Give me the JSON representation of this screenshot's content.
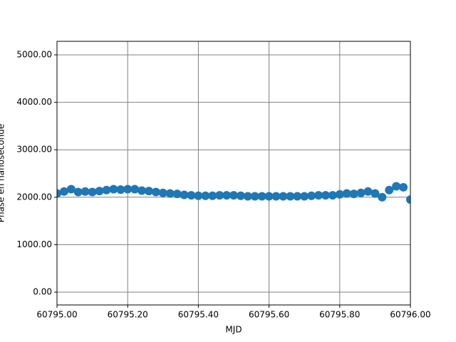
{
  "chart_data": {
    "type": "scatter",
    "xlabel": "MJD",
    "ylabel": "Phase en nanoseconde",
    "xlim": [
      60795.0,
      60796.0
    ],
    "xticks": [
      {
        "value": 60795.0,
        "label": "60795.00"
      },
      {
        "value": 60795.2,
        "label": "60795.20"
      },
      {
        "value": 60795.4,
        "label": "60795.40"
      },
      {
        "value": 60795.6,
        "label": "60795.60"
      },
      {
        "value": 60795.8,
        "label": "60795.80"
      },
      {
        "value": 60796.0,
        "label": "60796.00"
      }
    ],
    "ylim": [
      -270,
      5285
    ],
    "yticks": [
      {
        "value": 0,
        "label": "0.00"
      },
      {
        "value": 1000,
        "label": "1000.00"
      },
      {
        "value": 2000,
        "label": "2000.00"
      },
      {
        "value": 3000,
        "label": "3000.00"
      },
      {
        "value": 4000,
        "label": "4000.00"
      },
      {
        "value": 5000,
        "label": "5000.00"
      }
    ],
    "grid": true,
    "color": "#1f77b4",
    "x": [
      60795.0,
      60795.02,
      60795.04,
      60795.06,
      60795.08,
      60795.1,
      60795.12,
      60795.14,
      60795.16,
      60795.18,
      60795.2,
      60795.22,
      60795.24,
      60795.26,
      60795.28,
      60795.3,
      60795.32,
      60795.34,
      60795.36,
      60795.38,
      60795.4,
      60795.42,
      60795.44,
      60795.46,
      60795.48,
      60795.5,
      60795.52,
      60795.54,
      60795.56,
      60795.58,
      60795.6,
      60795.62,
      60795.64,
      60795.66,
      60795.68,
      60795.7,
      60795.72,
      60795.74,
      60795.76,
      60795.78,
      60795.8,
      60795.82,
      60795.84,
      60795.86,
      60795.88,
      60795.9,
      60795.92,
      60795.94,
      60795.96,
      60795.98,
      60796.0
    ],
    "values": [
      2080,
      2120,
      2170,
      2110,
      2120,
      2110,
      2130,
      2150,
      2170,
      2160,
      2170,
      2170,
      2140,
      2130,
      2110,
      2090,
      2080,
      2070,
      2050,
      2040,
      2030,
      2030,
      2030,
      2040,
      2040,
      2040,
      2030,
      2020,
      2020,
      2020,
      2020,
      2020,
      2020,
      2020,
      2020,
      2020,
      2030,
      2040,
      2040,
      2040,
      2060,
      2080,
      2070,
      2090,
      2120,
      2080,
      2000,
      2150,
      2230,
      2210,
      1950
    ]
  }
}
